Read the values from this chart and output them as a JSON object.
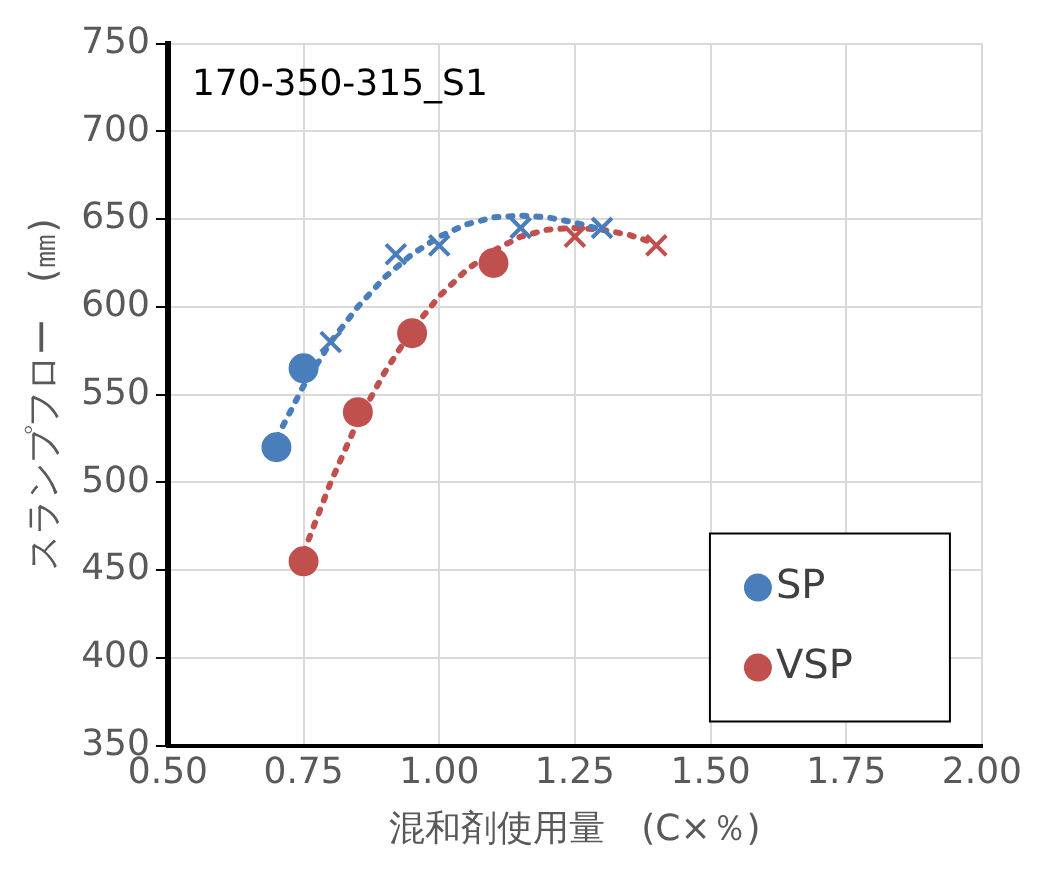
{
  "chart_data": {
    "type": "scatter",
    "title": "170-350-315_S1",
    "xlabel": "混和剤使用量　(C×％)",
    "ylabel": "スランプフロー　(㎜)",
    "xlim": [
      0.5,
      2.0
    ],
    "xticks": [
      {
        "value": 0.5,
        "label": "0.50"
      },
      {
        "value": 0.75,
        "label": "0.75"
      },
      {
        "value": 1.0,
        "label": "1.00"
      },
      {
        "value": 1.25,
        "label": "1.25"
      },
      {
        "value": 1.5,
        "label": "1.50"
      },
      {
        "value": 1.75,
        "label": "1.75"
      },
      {
        "value": 2.0,
        "label": "2.00"
      }
    ],
    "ylim": [
      350,
      750
    ],
    "yticks": [
      350,
      400,
      450,
      500,
      550,
      600,
      650,
      700,
      750
    ],
    "grid": true,
    "legend": "bottom right",
    "series": [
      {
        "name": "SP",
        "color": "#4a7ebb",
        "marker": "circle",
        "x": [
          0.7,
          0.75
        ],
        "values": [
          520,
          565
        ]
      },
      {
        "name": "VSP",
        "color": "#c0504d",
        "marker": "circle",
        "x": [
          0.75,
          0.85,
          0.95,
          1.1
        ],
        "values": [
          455,
          540,
          585,
          625
        ]
      },
      {
        "color": "#4a7ebb",
        "marker": "cross",
        "x": [
          0.8,
          0.92,
          1.0,
          1.15,
          1.3
        ],
        "values": [
          580,
          630,
          635,
          645,
          645
        ]
      },
      {
        "color": "#c0504d",
        "marker": "cross",
        "x": [
          1.25,
          1.4
        ],
        "values": [
          640,
          635
        ]
      },
      {
        "type": "line",
        "color": "#4a7ebb",
        "marker": "none",
        "line_style": "dotted",
        "x": [
          0.7,
          0.75,
          0.8,
          0.85,
          0.9,
          0.95,
          1.0,
          1.05,
          1.1,
          1.15,
          1.2,
          1.25,
          1.3
        ],
        "values": [
          525,
          555,
          580,
          600,
          617,
          630,
          640,
          647,
          651,
          652,
          651,
          648,
          644
        ]
      },
      {
        "type": "line",
        "color": "#c0504d",
        "marker": "none",
        "line_style": "dotted",
        "x": [
          0.75,
          0.8,
          0.85,
          0.9,
          0.95,
          1.0,
          1.05,
          1.1,
          1.15,
          1.2,
          1.25,
          1.3,
          1.35,
          1.4
        ],
        "values": [
          460,
          500,
          535,
          563,
          587,
          606,
          621,
          632,
          640,
          644,
          645,
          644,
          641,
          636
        ]
      }
    ]
  }
}
